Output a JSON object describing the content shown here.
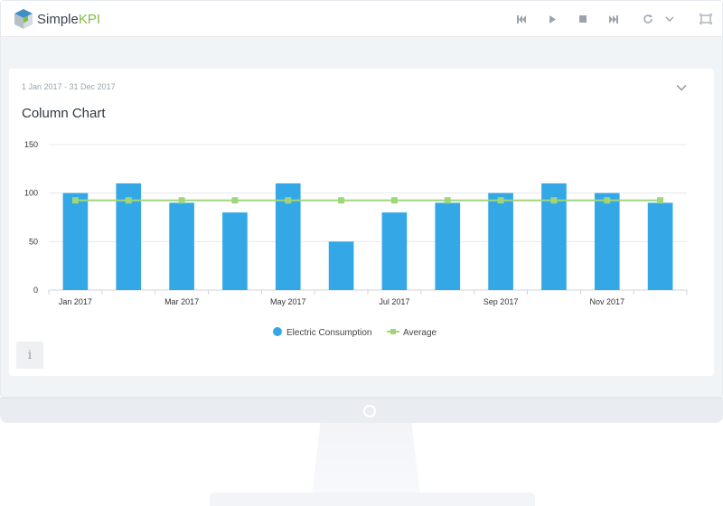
{
  "app": {
    "brand_main": "Simple",
    "brand_accent": "KPI",
    "accent_color": "#7cc142"
  },
  "toolbar": {
    "icons": [
      "skip-back-icon",
      "play-icon",
      "stop-icon",
      "skip-forward-icon",
      "refresh-icon",
      "chevron-down-icon",
      "fullscreen-icon"
    ]
  },
  "card": {
    "date_range": "1 Jan 2017 - 31 Dec 2017",
    "title": "Column Chart",
    "info_label": "i"
  },
  "chart_data": {
    "type": "bar",
    "title": "Column Chart",
    "categories": [
      "Jan 2017",
      "Feb 2017",
      "Mar 2017",
      "Apr 2017",
      "May 2017",
      "Jun 2017",
      "Jul 2017",
      "Aug 2017",
      "Sep 2017",
      "Oct 2017",
      "Nov 2017",
      "Dec 2017"
    ],
    "tick_labels": [
      "Jan 2017",
      "",
      "Mar 2017",
      "",
      "May 2017",
      "",
      "Jul 2017",
      "",
      "Sep 2017",
      "",
      "Nov 2017",
      ""
    ],
    "series": [
      {
        "name": "Electric Consumption",
        "type": "bar",
        "color": "#34a8e6",
        "values": [
          100,
          110,
          90,
          80,
          110,
          50,
          80,
          90,
          100,
          110,
          100,
          90
        ]
      },
      {
        "name": "Average",
        "type": "line",
        "color": "#9fd67a",
        "values": [
          92.5,
          92.5,
          92.5,
          92.5,
          92.5,
          92.5,
          92.5,
          92.5,
          92.5,
          92.5,
          92.5,
          92.5
        ]
      }
    ],
    "yticks": [
      0,
      50,
      100,
      150
    ],
    "ylim": [
      0,
      150
    ],
    "grid": true,
    "legend_position": "bottom-center"
  }
}
